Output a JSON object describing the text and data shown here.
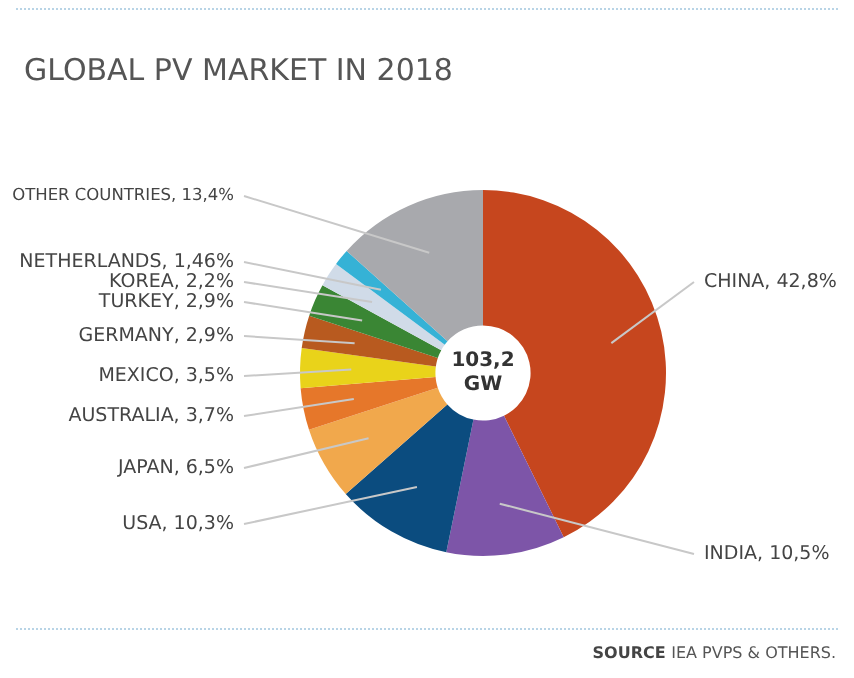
{
  "chart_data": {
    "type": "donut",
    "title": "GLOBAL PV MARKET IN 2018",
    "categories": [
      "CHINA",
      "INDIA",
      "USA",
      "JAPAN",
      "AUSTRALIA",
      "MEXICO",
      "GERMANY",
      "TURKEY",
      "KOREA",
      "NETHERLANDS",
      "OTHER COUNTRIES"
    ],
    "values": [
      42.8,
      10.5,
      10.3,
      6.5,
      3.7,
      3.5,
      2.9,
      2.9,
      2.2,
      1.46,
      13.4
    ],
    "value_labels": [
      "42,8%",
      "10,5%",
      "10,3%",
      "6,5%",
      "3,7%",
      "3,5%",
      "2,9%",
      "2,9%",
      "2,2%",
      "1,46%",
      "13,4%"
    ],
    "colors": [
      "#c6461e",
      "#7d55a8",
      "#0b4c7f",
      "#f1a84c",
      "#e6772a",
      "#e9d31a",
      "#b85a1f",
      "#3a8634",
      "#d0dbe8",
      "#35b2d6",
      "#a8a9ad"
    ],
    "annotations": [
      "103,2 GW",
      "SOURCE IEA PVPS & OTHERS."
    ],
    "legend": false
  }
}
